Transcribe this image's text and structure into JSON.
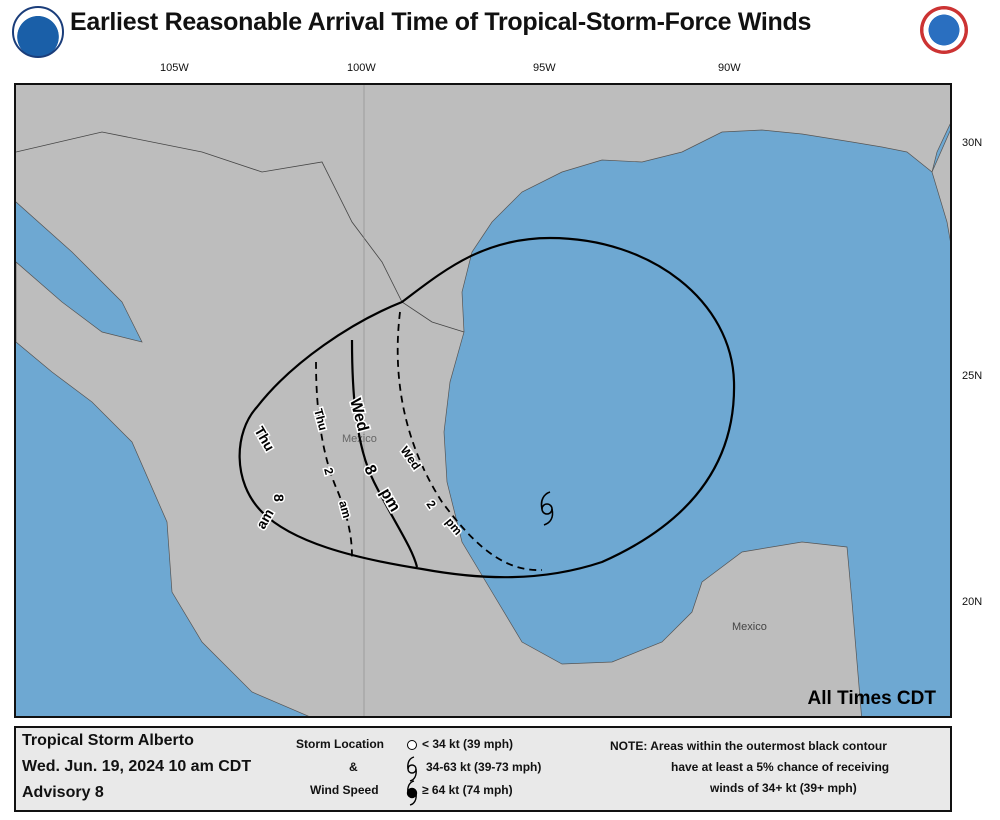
{
  "header": {
    "title": "Earliest Reasonable Arrival Time of Tropical-Storm-Force Winds",
    "logos": [
      "NOAA",
      "NATIONAL WEATHER SERVICE"
    ]
  },
  "axes": {
    "lon": [
      "105W",
      "100W",
      "95W",
      "90W"
    ],
    "lat": [
      "30N",
      "25N",
      "20N"
    ]
  },
  "map": {
    "land_color": "#bdbdbd",
    "water_color": "#6ea8d2",
    "country_labels": [
      "Mexico",
      "Mexico"
    ],
    "all_times": "All Times CDT",
    "isochrones": [
      {
        "day": "Thu",
        "hour": "8",
        "ampm": "am",
        "style": "solid"
      },
      {
        "day": "Thu",
        "hour": "2",
        "ampm": "am",
        "style": "dashed"
      },
      {
        "day": "Wed",
        "hour": "8",
        "ampm": "pm",
        "style": "solid"
      },
      {
        "day": "Wed",
        "hour": "2",
        "ampm": "pm",
        "style": "dashed"
      }
    ],
    "storm_icon": "tropical-storm-symbol"
  },
  "legend": {
    "storm_name": "Tropical Storm Alberto",
    "datetime": "Wed. Jun. 19, 2024  10 am CDT",
    "advisory": "Advisory 8",
    "key_title_1": "Storm Location",
    "key_title_2": "&",
    "key_title_3": "Wind Speed",
    "key_items": [
      "< 34 kt (39 mph)",
      "34-63 kt (39-73 mph)",
      "≥ 64 kt (74 mph)"
    ],
    "note_1": "NOTE: Areas within the outermost black contour",
    "note_2": "have at least a 5% chance of receiving",
    "note_3": "winds of 34+ kt (39+ mph)"
  }
}
